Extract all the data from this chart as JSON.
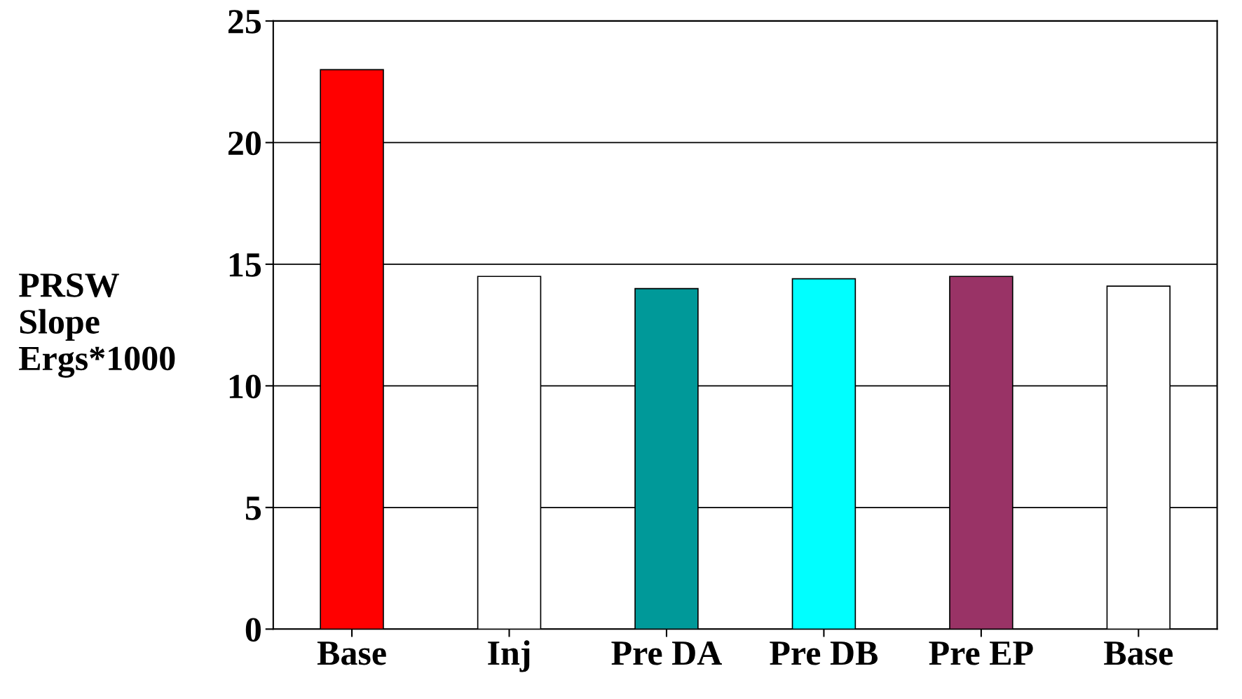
{
  "chart_data": {
    "type": "bar",
    "ylabel": "PRSW\nSlope\nErgs*1000",
    "categories": [
      "Base",
      "Inj",
      "Pre DA",
      "Pre DB",
      "Pre EP",
      "Base"
    ],
    "values": [
      23.0,
      14.5,
      14.0,
      14.4,
      14.5,
      14.1
    ],
    "colors": [
      "#ff0000",
      "#ffffff",
      "#009999",
      "#00ffff",
      "#993366",
      "#ffffff"
    ],
    "ylim": [
      0,
      25
    ],
    "yticks": [
      0,
      5,
      10,
      15,
      20,
      25
    ],
    "grid": "y"
  }
}
